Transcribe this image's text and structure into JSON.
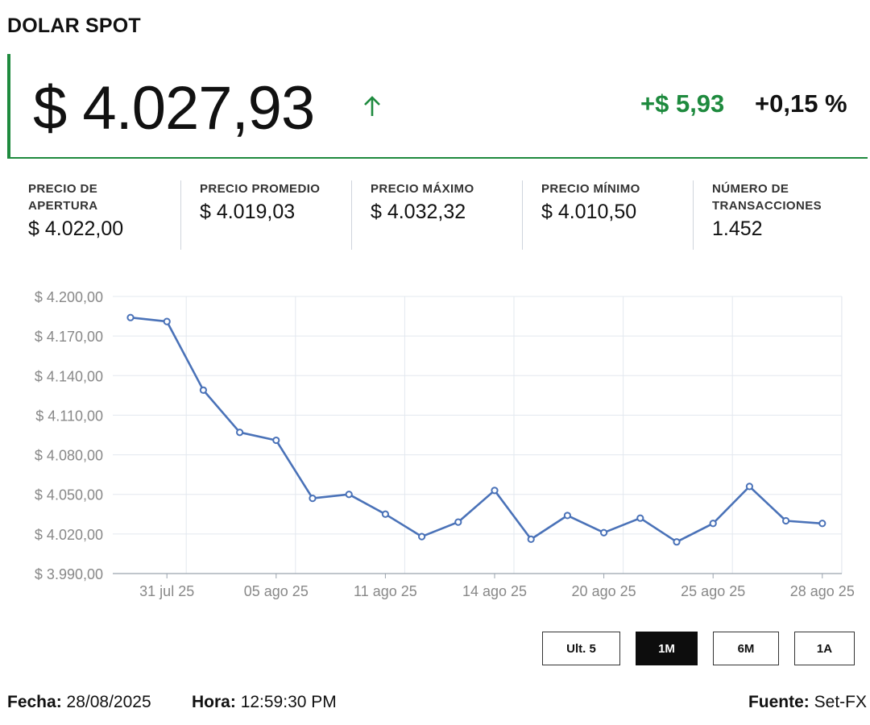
{
  "title": "DOLAR SPOT",
  "price": "$ 4.027,93",
  "trend_icon": "arrow-up-icon",
  "change_abs": "+$ 5,93",
  "change_pct": "+0,15 %",
  "colors": {
    "accent": "#1e8a3e",
    "series": "#4a72b8",
    "active_button": "#0d0d0d"
  },
  "stats": [
    {
      "label": "PRECIO DE APERTURA",
      "value": "$ 4.022,00"
    },
    {
      "label": "PRECIO PROMEDIO",
      "value": "$ 4.019,03"
    },
    {
      "label": "PRECIO MÁXIMO",
      "value": "$ 4.032,32"
    },
    {
      "label": "PRECIO MÍNIMO",
      "value": "$ 4.010,50"
    },
    {
      "label": "NÚMERO DE TRANSACCIONES",
      "value": "1.452"
    }
  ],
  "ranges": [
    {
      "label": "Ult. 5",
      "active": false
    },
    {
      "label": "1M",
      "active": true
    },
    {
      "label": "6M",
      "active": false
    },
    {
      "label": "1A",
      "active": false
    }
  ],
  "footer": {
    "fecha_label": "Fecha:",
    "fecha": "28/08/2025",
    "hora_label": "Hora:",
    "hora": "12:59:30 PM",
    "fuente_label": "Fuente:",
    "fuente": "Set-FX"
  },
  "chart_data": {
    "type": "line",
    "title": "",
    "xlabel": "",
    "ylabel": "",
    "ylim": [
      3990,
      4200
    ],
    "yticks": [
      3990,
      4020,
      4050,
      4080,
      4110,
      4140,
      4170,
      4200
    ],
    "ytick_labels": [
      "$ 3.990,00",
      "$ 4.020,00",
      "$ 4.050,00",
      "$ 4.080,00",
      "$ 4.110,00",
      "$ 4.140,00",
      "$ 4.170,00",
      "$ 4.200,00"
    ],
    "xticks": [
      {
        "index": 1,
        "label": "31 jul 25"
      },
      {
        "index": 4,
        "label": "05 ago 25"
      },
      {
        "index": 7,
        "label": "11 ago 25"
      },
      {
        "index": 10,
        "label": "14 ago 25"
      },
      {
        "index": 13,
        "label": "20 ago 25"
      },
      {
        "index": 16,
        "label": "25 ago 25"
      },
      {
        "index": 19,
        "label": "28 ago 25"
      }
    ],
    "values": [
      4184,
      4181,
      4129,
      4097,
      4091,
      4047,
      4050,
      4035,
      4018,
      4029,
      4053,
      4016,
      4034,
      4021,
      4032,
      4014,
      4028,
      4056,
      4030,
      4028
    ],
    "grid": true
  }
}
